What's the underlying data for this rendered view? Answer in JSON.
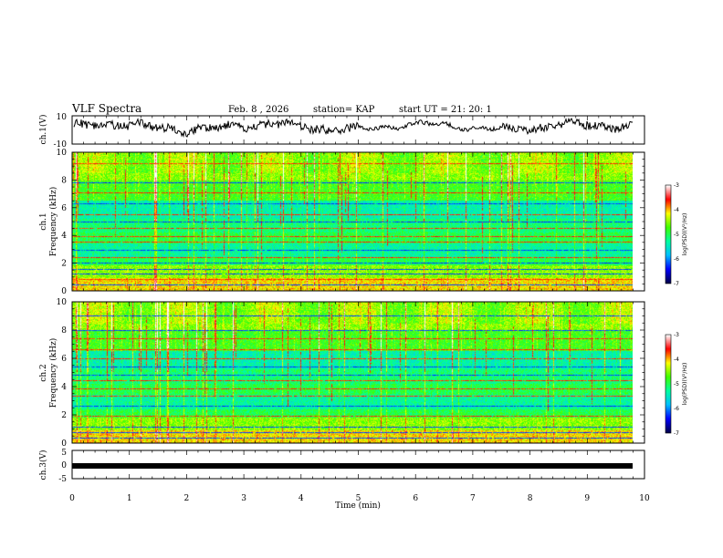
{
  "header": {
    "title": "VLF Spectra",
    "date": "Feb. 8  , 2026",
    "station": "station= KAP",
    "start_ut": "start  UT  =   21: 20: 1"
  },
  "colors": {
    "bg": "#ffffff",
    "axis": "#000000",
    "trace": "#000000",
    "colormap": [
      "#00004a",
      "#0000ff",
      "#00c0ff",
      "#00ffa0",
      "#40ff00",
      "#ffff00",
      "#ff0000",
      "#ffffff"
    ]
  },
  "chart_data": [
    {
      "type": "line",
      "id": "ch1",
      "ylabel": "ch.1(V)",
      "ylim": [
        -10,
        10
      ],
      "y_ticks": [
        "10",
        "-10"
      ],
      "xlim": [
        0,
        10
      ],
      "description_series": "noisy waveform, amplitude approx 0 to 8 V around center"
    },
    {
      "type": "heatmap",
      "id": "spec1",
      "ylabel_top": "ch.1",
      "ylabel": "Frequency (kHz)",
      "xlim": [
        0,
        10
      ],
      "ylim": [
        0,
        10
      ],
      "y_ticks": [
        "0",
        "2",
        "4",
        "6",
        "8",
        "10"
      ],
      "colorbar": {
        "label": "log(PSD)(V²/Hz)",
        "range": [
          -7,
          -3
        ],
        "ticks": [
          "-3",
          "-4",
          "-5",
          "-6",
          "-7"
        ]
      }
    },
    {
      "type": "heatmap",
      "id": "spec2",
      "ylabel_top": "ch.2",
      "ylabel": "Frequency (kHz)",
      "xlim": [
        0,
        10
      ],
      "ylim": [
        0,
        10
      ],
      "y_ticks": [
        "0",
        "2",
        "4",
        "6",
        "8",
        "10"
      ],
      "colorbar": {
        "label": "log(PSD)(V²/Hz)",
        "range": [
          -7,
          -3
        ],
        "ticks": [
          "-3",
          "-4",
          "-5",
          "-6",
          "-7"
        ]
      }
    },
    {
      "type": "line",
      "id": "ch3",
      "ylabel": "ch.3(V)",
      "ylim": [
        -5,
        5
      ],
      "y_ticks": [
        "5",
        "0",
        "-5"
      ],
      "xlim": [
        0,
        10
      ],
      "x_ticks": [
        "0",
        "1",
        "2",
        "3",
        "4",
        "5",
        "6",
        "7",
        "8",
        "9",
        "10"
      ],
      "xlabel": "Time  (min)"
    }
  ]
}
